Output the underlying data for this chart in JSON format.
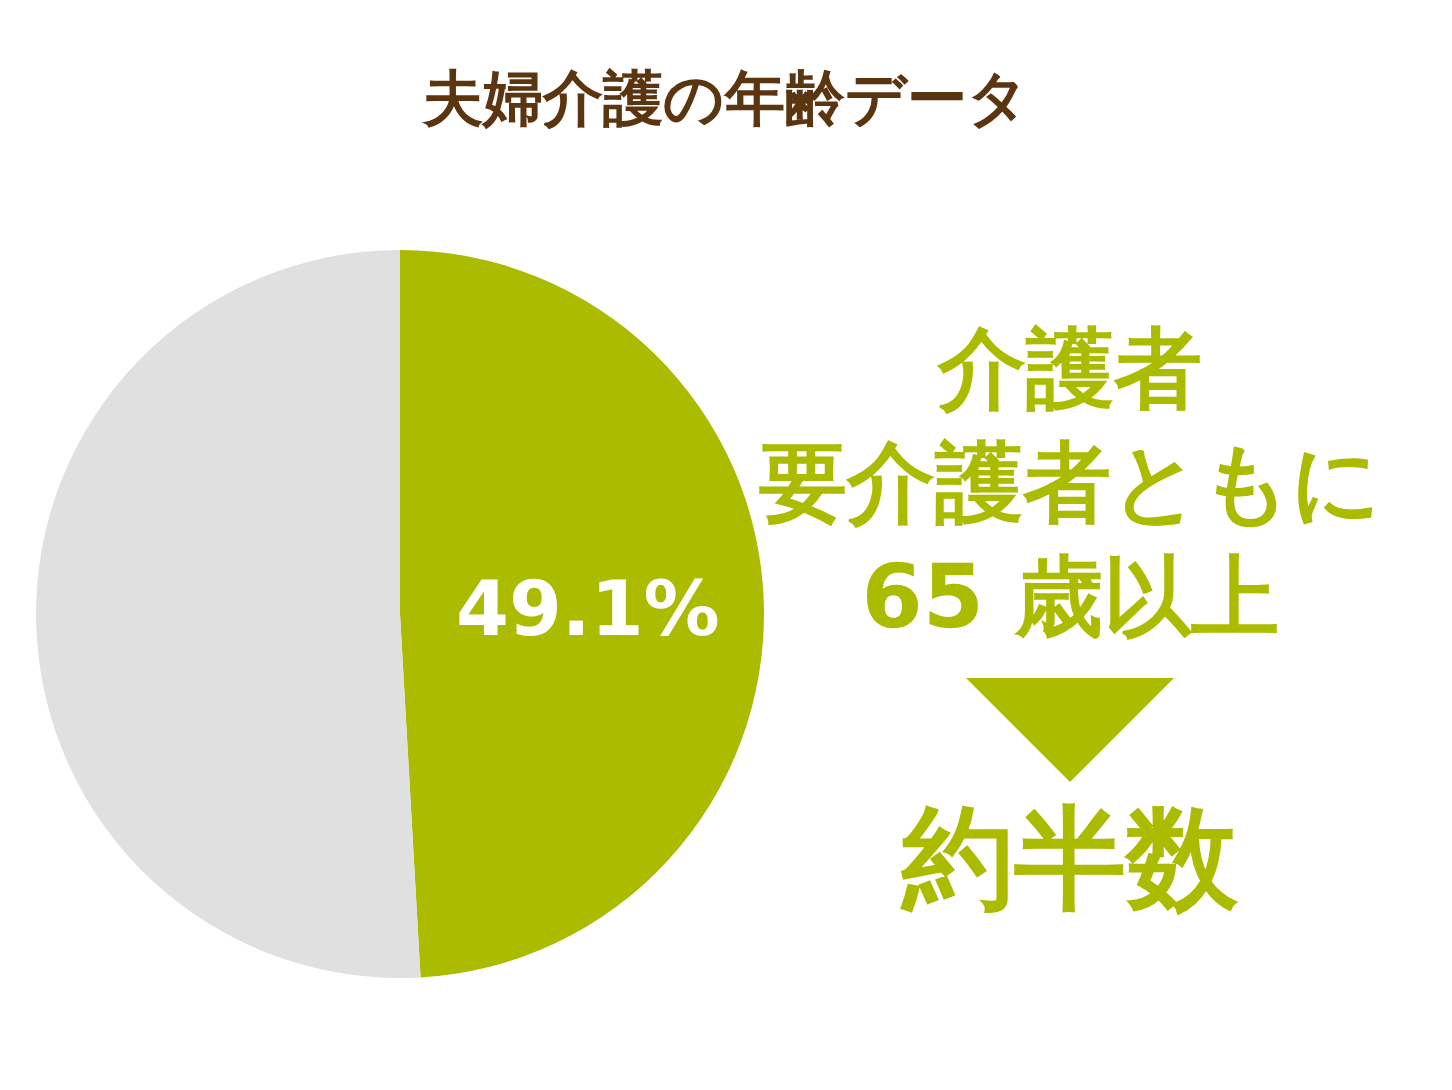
{
  "chart_data": {
    "type": "pie",
    "title": "夫婦介護の年齢データ",
    "categories": [
      null,
      null
    ],
    "values": [
      49.1,
      50.9
    ],
    "colors": [
      "#abbb00",
      "#e0e0e0"
    ],
    "value_labels": [
      "49.1%",
      null
    ],
    "annotations": [
      "介護者",
      "要介護者ともに",
      "65 歳以上",
      "約半数"
    ]
  }
}
